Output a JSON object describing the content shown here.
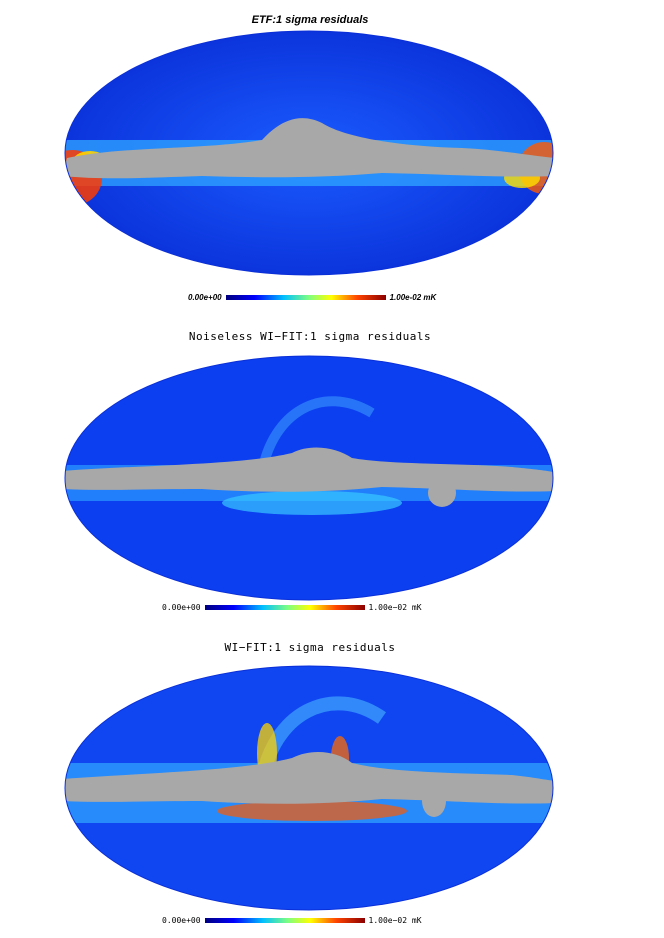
{
  "panels": [
    {
      "title": "ETF:1 sigma residuals",
      "colorbar": {
        "min_label": "0.00e+00",
        "max_label": "1.00e-02 mK"
      }
    },
    {
      "title": "Noiseless WI−FIT:1 sigma residuals",
      "colorbar": {
        "min_label": "0.00e+00",
        "max_label": "1.00e−02 mK"
      }
    },
    {
      "title": "WI−FIT:1 sigma residuals",
      "colorbar": {
        "min_label": "0.00e+00",
        "max_label": "1.00e−02 mK"
      }
    }
  ],
  "colors": {
    "map_background": "#0a3cf0",
    "masked_region": "#a8a8a8",
    "colormap": [
      "#00007f",
      "#0000ff",
      "#00bfff",
      "#7fff7f",
      "#ffff00",
      "#ff4500",
      "#8b0000"
    ]
  }
}
